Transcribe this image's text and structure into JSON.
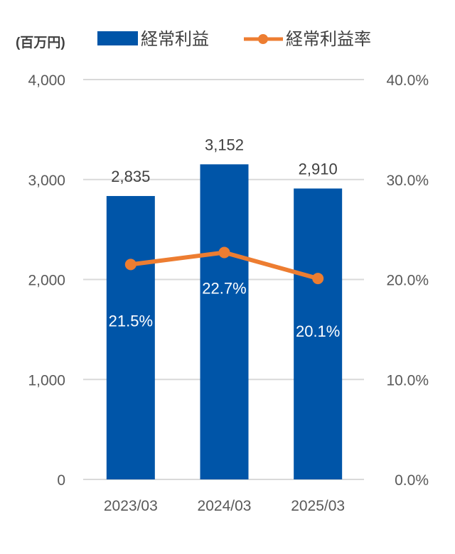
{
  "chart_data": {
    "type": "bar+line",
    "unit_label": "(百万円)",
    "categories": [
      "2023/03",
      "2024/03",
      "2025/03"
    ],
    "series": [
      {
        "name": "経常利益",
        "type": "bar",
        "axis": "left",
        "values": [
          2835,
          3152,
          2910
        ],
        "labels": [
          "2,835",
          "3,152",
          "2,910"
        ],
        "color": "#0055A8"
      },
      {
        "name": "経常利益率",
        "type": "line",
        "axis": "right",
        "values": [
          21.5,
          22.7,
          20.1
        ],
        "labels": [
          "21.5%",
          "22.7%",
          "20.1%"
        ],
        "color": "#ED7D31"
      }
    ],
    "left_axis": {
      "min": 0,
      "max": 4000,
      "ticks": [
        0,
        1000,
        2000,
        3000,
        4000
      ],
      "tick_labels": [
        "0",
        "1,000",
        "2,000",
        "3,000",
        "4,000"
      ]
    },
    "right_axis": {
      "min": 0,
      "max": 40,
      "ticks": [
        0,
        10,
        20,
        30,
        40
      ],
      "tick_labels": [
        "0.0%",
        "10.0%",
        "20.0%",
        "30.0%",
        "40.0%"
      ]
    },
    "grid": true,
    "legend_position": "top"
  },
  "colors": {
    "bar": "#0055A8",
    "line": "#ED7D31",
    "grid": "#D9D9D9",
    "text": "#595959"
  }
}
